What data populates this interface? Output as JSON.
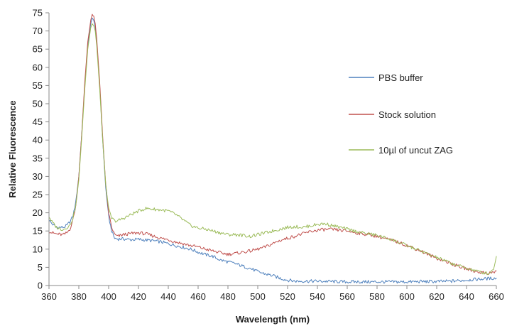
{
  "chart_data": {
    "type": "line",
    "title": "",
    "xlabel": "Wavelength (nm)",
    "ylabel": "Relative Fluorescence",
    "xlim": [
      360,
      660
    ],
    "ylim": [
      0,
      75
    ],
    "x_ticks": [
      360,
      380,
      400,
      420,
      440,
      460,
      480,
      500,
      520,
      540,
      560,
      580,
      600,
      620,
      640,
      660
    ],
    "y_ticks": [
      0,
      5,
      10,
      15,
      20,
      25,
      30,
      35,
      40,
      45,
      50,
      55,
      60,
      65,
      70,
      75
    ],
    "grid": false,
    "legend_position": "right",
    "series": [
      {
        "name": "PBS buffer",
        "color": "#4f81bd",
        "points": [
          [
            360,
            18
          ],
          [
            362,
            17
          ],
          [
            365,
            16
          ],
          [
            368,
            16
          ],
          [
            370,
            16
          ],
          [
            372,
            16.5
          ],
          [
            374,
            17.5
          ],
          [
            376,
            19
          ],
          [
            378,
            23
          ],
          [
            380,
            30
          ],
          [
            382,
            42
          ],
          [
            384,
            55
          ],
          [
            386,
            66
          ],
          [
            388,
            72
          ],
          [
            389,
            73.5
          ],
          [
            390,
            73
          ],
          [
            391,
            71
          ],
          [
            392,
            67
          ],
          [
            394,
            55
          ],
          [
            396,
            40
          ],
          [
            398,
            27
          ],
          [
            400,
            19
          ],
          [
            402,
            15
          ],
          [
            404,
            13
          ],
          [
            406,
            12.8
          ],
          [
            410,
            12.8
          ],
          [
            415,
            12.6
          ],
          [
            420,
            12.7
          ],
          [
            425,
            12.5
          ],
          [
            430,
            12.3
          ],
          [
            435,
            12
          ],
          [
            440,
            11.5
          ],
          [
            445,
            11
          ],
          [
            450,
            10.5
          ],
          [
            455,
            10
          ],
          [
            460,
            9.2
          ],
          [
            465,
            8.5
          ],
          [
            470,
            8
          ],
          [
            475,
            7
          ],
          [
            480,
            6.5
          ],
          [
            485,
            6
          ],
          [
            490,
            5.3
          ],
          [
            495,
            4.7
          ],
          [
            500,
            3.8
          ],
          [
            505,
            3.2
          ],
          [
            510,
            2.7
          ],
          [
            515,
            2
          ],
          [
            520,
            1.5
          ],
          [
            525,
            1.2
          ],
          [
            530,
            1.2
          ],
          [
            540,
            1.2
          ],
          [
            550,
            1.1
          ],
          [
            560,
            1
          ],
          [
            570,
            1
          ],
          [
            580,
            1
          ],
          [
            590,
            1
          ],
          [
            600,
            1
          ],
          [
            610,
            1.1
          ],
          [
            620,
            1.1
          ],
          [
            630,
            1.2
          ],
          [
            640,
            1.5
          ],
          [
            650,
            1.8
          ],
          [
            658,
            2
          ],
          [
            660,
            2
          ]
        ]
      },
      {
        "name": "Stock solution",
        "color": "#c0504d",
        "points": [
          [
            360,
            15
          ],
          [
            362,
            14.5
          ],
          [
            365,
            14.2
          ],
          [
            368,
            14
          ],
          [
            370,
            14
          ],
          [
            372,
            14.5
          ],
          [
            374,
            15.5
          ],
          [
            376,
            18
          ],
          [
            378,
            22
          ],
          [
            380,
            30
          ],
          [
            382,
            42
          ],
          [
            384,
            56
          ],
          [
            386,
            67
          ],
          [
            388,
            73
          ],
          [
            389,
            74.5
          ],
          [
            390,
            74
          ],
          [
            391,
            72
          ],
          [
            392,
            68
          ],
          [
            394,
            56
          ],
          [
            396,
            41
          ],
          [
            398,
            28
          ],
          [
            400,
            20
          ],
          [
            402,
            16
          ],
          [
            404,
            14
          ],
          [
            406,
            13.5
          ],
          [
            410,
            14
          ],
          [
            415,
            14.3
          ],
          [
            420,
            14.5
          ],
          [
            425,
            14.2
          ],
          [
            430,
            13.6
          ],
          [
            435,
            13
          ],
          [
            440,
            12.6
          ],
          [
            445,
            12
          ],
          [
            450,
            11.5
          ],
          [
            455,
            11
          ],
          [
            460,
            10.6
          ],
          [
            465,
            10
          ],
          [
            470,
            9.5
          ],
          [
            475,
            9
          ],
          [
            480,
            8.6
          ],
          [
            485,
            8.8
          ],
          [
            490,
            9.2
          ],
          [
            495,
            9.5
          ],
          [
            500,
            10
          ],
          [
            505,
            10.6
          ],
          [
            510,
            11.5
          ],
          [
            515,
            12.4
          ],
          [
            520,
            13
          ],
          [
            525,
            13.6
          ],
          [
            530,
            14.2
          ],
          [
            535,
            14.8
          ],
          [
            540,
            15.2
          ],
          [
            545,
            15.4
          ],
          [
            550,
            15.4
          ],
          [
            555,
            15.2
          ],
          [
            560,
            15
          ],
          [
            565,
            14.6
          ],
          [
            570,
            14.2
          ],
          [
            575,
            14
          ],
          [
            580,
            13.5
          ],
          [
            585,
            13
          ],
          [
            590,
            12.4
          ],
          [
            595,
            11.8
          ],
          [
            600,
            11
          ],
          [
            605,
            10.2
          ],
          [
            610,
            9.4
          ],
          [
            615,
            8.4
          ],
          [
            620,
            7.5
          ],
          [
            625,
            6.8
          ],
          [
            630,
            6
          ],
          [
            635,
            5.2
          ],
          [
            640,
            4.6
          ],
          [
            645,
            4
          ],
          [
            650,
            3.6
          ],
          [
            655,
            3.4
          ],
          [
            658,
            3.6
          ],
          [
            660,
            4
          ]
        ]
      },
      {
        "name": "10µl of uncut ZAG",
        "color": "#9bbb59",
        "points": [
          [
            360,
            19
          ],
          [
            362,
            17.5
          ],
          [
            365,
            16
          ],
          [
            368,
            15.5
          ],
          [
            370,
            15.5
          ],
          [
            372,
            16
          ],
          [
            374,
            16.5
          ],
          [
            376,
            18.5
          ],
          [
            378,
            22
          ],
          [
            380,
            29
          ],
          [
            382,
            41
          ],
          [
            384,
            54
          ],
          [
            386,
            65
          ],
          [
            388,
            71
          ],
          [
            389,
            72
          ],
          [
            390,
            71.5
          ],
          [
            391,
            70
          ],
          [
            392,
            66
          ],
          [
            394,
            54
          ],
          [
            396,
            40
          ],
          [
            398,
            28
          ],
          [
            400,
            21
          ],
          [
            402,
            18.5
          ],
          [
            404,
            17.8
          ],
          [
            406,
            17.8
          ],
          [
            410,
            18.5
          ],
          [
            415,
            19.5
          ],
          [
            420,
            20.5
          ],
          [
            425,
            21.2
          ],
          [
            430,
            21
          ],
          [
            435,
            20.8
          ],
          [
            440,
            20.5
          ],
          [
            445,
            19.5
          ],
          [
            450,
            18
          ],
          [
            455,
            16.5
          ],
          [
            460,
            15.8
          ],
          [
            465,
            15.5
          ],
          [
            470,
            15
          ],
          [
            475,
            14.5
          ],
          [
            480,
            14
          ],
          [
            485,
            14
          ],
          [
            490,
            13.8
          ],
          [
            495,
            13.5
          ],
          [
            500,
            14
          ],
          [
            505,
            14.5
          ],
          [
            510,
            15
          ],
          [
            515,
            15.5
          ],
          [
            520,
            16
          ],
          [
            525,
            16.2
          ],
          [
            530,
            16
          ],
          [
            535,
            16.4
          ],
          [
            540,
            16.8
          ],
          [
            545,
            17
          ],
          [
            550,
            16.5
          ],
          [
            555,
            16
          ],
          [
            560,
            15.5
          ],
          [
            565,
            15
          ],
          [
            570,
            14.5
          ],
          [
            575,
            14.2
          ],
          [
            580,
            13.8
          ],
          [
            585,
            13.2
          ],
          [
            590,
            12.6
          ],
          [
            595,
            11.8
          ],
          [
            600,
            11
          ],
          [
            605,
            10.2
          ],
          [
            610,
            9.4
          ],
          [
            615,
            8.5
          ],
          [
            620,
            7.7
          ],
          [
            625,
            6.9
          ],
          [
            630,
            6.1
          ],
          [
            635,
            5.4
          ],
          [
            640,
            4.8
          ],
          [
            645,
            4.2
          ],
          [
            650,
            3.6
          ],
          [
            655,
            3.3
          ],
          [
            658,
            4.5
          ],
          [
            660,
            8
          ]
        ]
      }
    ]
  }
}
